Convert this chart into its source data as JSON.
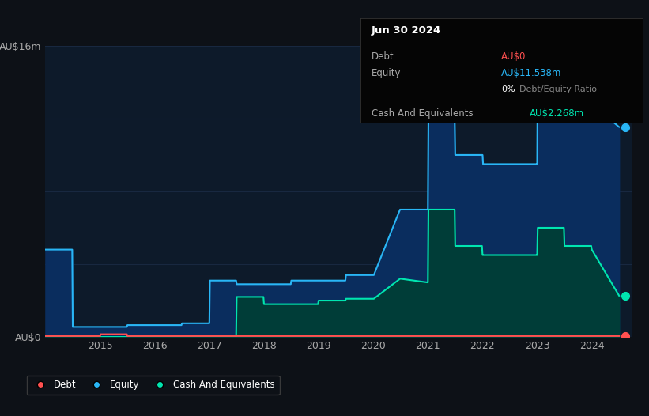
{
  "bg_color": "#0d1117",
  "plot_bg_color": "#0d1a2a",
  "ylim": [
    0,
    16
  ],
  "xlim": [
    2014.0,
    2024.75
  ],
  "ylabel_top": "AU$16m",
  "ylabel_bottom": "AU$0",
  "equity_line_color": "#29b6f6",
  "equity_fill_color": "#0a2d5e",
  "cash_line_color": "#00e5b0",
  "cash_fill_color": "#003d38",
  "debt_line_color": "#ff5050",
  "grid_color": "#182840",
  "xticks": [
    2015,
    2016,
    2017,
    2018,
    2019,
    2020,
    2021,
    2022,
    2023,
    2024
  ],
  "ytick_vals": [
    0,
    4,
    8,
    12,
    16
  ],
  "years": [
    2014.0,
    2014.49,
    2014.5,
    2015.0,
    2015.01,
    2015.49,
    2015.5,
    2015.99,
    2016.0,
    2016.49,
    2016.5,
    2016.99,
    2017.0,
    2017.01,
    2017.49,
    2017.5,
    2017.99,
    2018.0,
    2018.49,
    2018.5,
    2018.99,
    2019.0,
    2019.49,
    2019.5,
    2019.99,
    2020.0,
    2020.01,
    2020.49,
    2020.5,
    2020.99,
    2021.0,
    2021.01,
    2021.49,
    2021.5,
    2021.99,
    2022.0,
    2022.01,
    2022.49,
    2022.5,
    2022.99,
    2023.0,
    2023.01,
    2023.49,
    2023.5,
    2023.99,
    2024.0,
    2024.5
  ],
  "equity": [
    4.8,
    4.8,
    0.55,
    0.55,
    0.55,
    0.55,
    0.65,
    0.65,
    0.65,
    0.65,
    0.75,
    0.75,
    0.75,
    3.1,
    3.1,
    2.9,
    2.9,
    2.9,
    2.9,
    3.1,
    3.1,
    3.1,
    3.1,
    3.4,
    3.4,
    3.4,
    3.4,
    7.0,
    7.0,
    7.0,
    7.0,
    12.0,
    12.0,
    10.0,
    10.0,
    10.0,
    9.5,
    9.5,
    9.5,
    9.5,
    9.5,
    15.0,
    15.0,
    12.8,
    12.8,
    12.8,
    11.538
  ],
  "cash": [
    0.0,
    0.0,
    0.0,
    0.0,
    0.0,
    0.0,
    0.0,
    0.0,
    0.0,
    0.0,
    0.0,
    0.0,
    0.0,
    0.0,
    0.0,
    2.2,
    2.2,
    1.8,
    1.8,
    1.8,
    1.8,
    2.0,
    2.0,
    2.1,
    2.1,
    2.1,
    2.1,
    3.2,
    3.2,
    3.0,
    3.0,
    7.0,
    7.0,
    5.0,
    5.0,
    4.5,
    4.5,
    4.5,
    4.5,
    4.5,
    4.5,
    6.0,
    6.0,
    5.0,
    5.0,
    4.8,
    2.268
  ],
  "debt": [
    0.05,
    0.05,
    0.05,
    0.05,
    0.15,
    0.15,
    0.05,
    0.05,
    0.05,
    0.05,
    0.05,
    0.05,
    0.05,
    0.05,
    0.05,
    0.05,
    0.05,
    0.05,
    0.05,
    0.05,
    0.05,
    0.05,
    0.05,
    0.05,
    0.05,
    0.05,
    0.05,
    0.05,
    0.05,
    0.05,
    0.05,
    0.05,
    0.05,
    0.05,
    0.05,
    0.05,
    0.05,
    0.05,
    0.05,
    0.05,
    0.05,
    0.05,
    0.05,
    0.05,
    0.05,
    0.05,
    0.05
  ],
  "info_box": {
    "date": "Jun 30 2024",
    "debt_val": "AU$0",
    "debt_color": "#ff5050",
    "equity_val": "AU$11.538m",
    "equity_color": "#29b6f6",
    "ratio_white": "0%",
    "ratio_gray": " Debt/Equity Ratio",
    "cash_label": "Cash And Equivalents",
    "cash_val": "AU$2.268m",
    "cash_color": "#00e5b0"
  },
  "legend": [
    {
      "label": "Debt",
      "color": "#ff5050"
    },
    {
      "label": "Equity",
      "color": "#29b6f6"
    },
    {
      "label": "Cash And Equivalents",
      "color": "#00e5b0"
    }
  ]
}
